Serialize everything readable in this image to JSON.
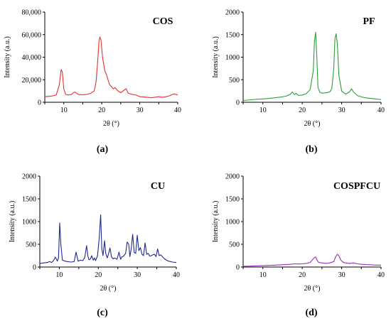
{
  "figure": {
    "panels": [
      {
        "caption": "(a)"
      },
      {
        "caption": "(b)"
      },
      {
        "caption": "(c)"
      },
      {
        "caption": "(d)"
      }
    ]
  },
  "chart_data": [
    {
      "type": "line",
      "title": "COS",
      "xlabel": "2θ (°)",
      "ylabel": "Intensity (a.u.)",
      "xlim": [
        5,
        40
      ],
      "ylim": [
        0,
        80000
      ],
      "xticks": [
        10,
        20,
        30,
        40
      ],
      "yticks": [
        0,
        20000,
        40000,
        60000,
        80000
      ],
      "ytick_labels": [
        "0",
        "20,000",
        "40,000",
        "60,000",
        "80,000"
      ],
      "color": "#e8312f",
      "series": [
        {
          "x": [
            5,
            6,
            7,
            8,
            8.8,
            9.3,
            9.6,
            10,
            10.5,
            11,
            12,
            12.5,
            13,
            13.5,
            14,
            15,
            16,
            17,
            18,
            18.5,
            19,
            19.3,
            19.5,
            19.8,
            20.2,
            20.8,
            21.3,
            22,
            23,
            23.5,
            24.3,
            25,
            26,
            26.4,
            27,
            28,
            29,
            30,
            31,
            32,
            33,
            34,
            35,
            36,
            37,
            38,
            39,
            40
          ],
          "y": [
            5000,
            5200,
            5600,
            6500,
            15000,
            29000,
            27000,
            12000,
            7000,
            6500,
            6800,
            8500,
            9000,
            7600,
            6800,
            6700,
            7000,
            7800,
            10000,
            18000,
            40000,
            55000,
            58000,
            55000,
            40000,
            28000,
            24000,
            16000,
            12000,
            13000,
            10000,
            8500,
            11000,
            12000,
            8000,
            7000,
            6500,
            5000,
            4800,
            4500,
            4000,
            4500,
            5000,
            4500,
            5000,
            6000,
            7500,
            6500
          ]
        }
      ]
    },
    {
      "type": "line",
      "title": "PF",
      "xlabel": "2θ (°)",
      "ylabel": "Intensity (a.u.)",
      "xlim": [
        5,
        40
      ],
      "ylim": [
        0,
        2000
      ],
      "xticks": [
        10,
        20,
        30,
        40
      ],
      "yticks": [
        0,
        500,
        1000,
        1500,
        2000
      ],
      "color": "#2e9e3a",
      "series": [
        {
          "x": [
            5,
            7,
            9,
            11,
            13,
            15,
            16,
            17,
            17.5,
            18,
            18.5,
            19,
            20,
            21,
            22,
            22.8,
            23.1,
            23.4,
            23.7,
            24,
            24.5,
            25,
            26,
            27,
            27.5,
            28,
            28.3,
            28.6,
            28.9,
            29.3,
            30,
            31,
            32,
            32.5,
            33,
            34,
            35,
            36,
            38,
            40
          ],
          "y": [
            40,
            55,
            70,
            80,
            100,
            120,
            140,
            180,
            230,
            170,
            200,
            150,
            160,
            190,
            280,
            700,
            1350,
            1550,
            1000,
            320,
            220,
            200,
            210,
            230,
            300,
            750,
            1400,
            1520,
            1300,
            600,
            250,
            180,
            230,
            300,
            230,
            150,
            120,
            100,
            80,
            60
          ]
        }
      ]
    },
    {
      "type": "line",
      "title": "CU",
      "xlabel": "2θ (°)",
      "ylabel": "Intensity (a.u.)",
      "xlim": [
        5,
        40
      ],
      "ylim": [
        0,
        2000
      ],
      "xticks": [
        10,
        20,
        30,
        40
      ],
      "yticks": [
        0,
        500,
        1000,
        1500,
        2000
      ],
      "color": "#1f2a8c",
      "series": [
        {
          "x": [
            5,
            6,
            7,
            7.5,
            8,
            8.5,
            9,
            9.5,
            9.8,
            10.1,
            10.4,
            10.8,
            11.5,
            12,
            13,
            13.8,
            14.3,
            14.8,
            15.5,
            16,
            16.5,
            17,
            17.3,
            17.6,
            18,
            18.3,
            18.7,
            19,
            19.3,
            19.8,
            20.2,
            20.6,
            20.9,
            21.2,
            21.6,
            21.9,
            22.3,
            22.6,
            23,
            23.4,
            23.8,
            24.2,
            24.8,
            25.3,
            25.7,
            26,
            26.5,
            27,
            27.4,
            27.8,
            28.1,
            28.4,
            28.8,
            29.2,
            29.6,
            30,
            30.4,
            30.8,
            31.2,
            31.6,
            32,
            32.4,
            32.8,
            33.2,
            33.6,
            34,
            34.4,
            34.8,
            35.2,
            35.6,
            36,
            36.5,
            37,
            37.5,
            38,
            39,
            40
          ],
          "y": [
            80,
            90,
            100,
            120,
            100,
            140,
            220,
            130,
            200,
            970,
            500,
            150,
            130,
            120,
            110,
            120,
            330,
            130,
            150,
            140,
            200,
            470,
            250,
            160,
            180,
            250,
            150,
            200,
            140,
            250,
            600,
            1150,
            400,
            250,
            580,
            300,
            200,
            280,
            420,
            220,
            180,
            200,
            170,
            330,
            170,
            220,
            240,
            300,
            550,
            500,
            230,
            380,
            720,
            320,
            300,
            700,
            360,
            430,
            280,
            250,
            530,
            280,
            300,
            240,
            250,
            270,
            280,
            230,
            400,
            250,
            270,
            220,
            180,
            150,
            130,
            110,
            100
          ]
        }
      ]
    },
    {
      "type": "line",
      "title": "COSPFCU",
      "xlabel": "2θ (°)",
      "ylabel": "Intensity (a.u.)",
      "xlim": [
        5,
        40
      ],
      "ylim": [
        0,
        2000
      ],
      "xticks": [
        10,
        20,
        30,
        40
      ],
      "yticks": [
        0,
        500,
        1000,
        1500,
        2000
      ],
      "color": "#9b30b8",
      "series": [
        {
          "x": [
            5,
            8,
            11,
            14,
            17,
            18,
            19,
            20,
            21,
            22,
            22.7,
            23.1,
            23.4,
            23.7,
            24.2,
            25,
            26,
            27,
            28,
            28.5,
            28.9,
            29.3,
            29.8,
            30.5,
            31,
            32,
            33,
            34,
            35,
            36,
            38,
            40
          ],
          "y": [
            15,
            25,
            35,
            45,
            60,
            70,
            65,
            70,
            80,
            100,
            170,
            210,
            220,
            160,
            100,
            90,
            80,
            90,
            120,
            230,
            280,
            250,
            150,
            100,
            90,
            80,
            90,
            70,
            60,
            55,
            45,
            40
          ]
        }
      ]
    }
  ]
}
